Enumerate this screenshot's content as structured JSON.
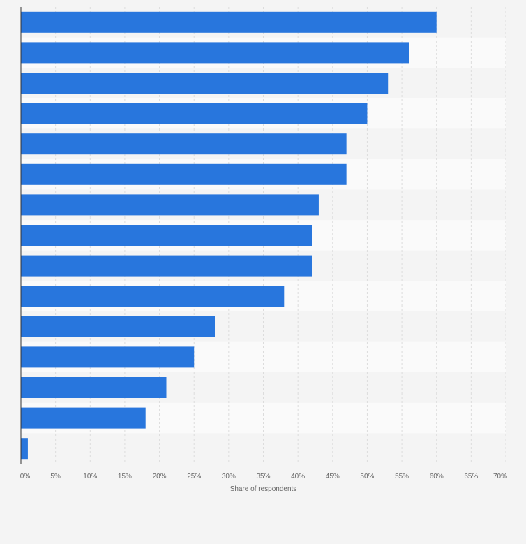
{
  "chart_data": {
    "type": "bar",
    "orientation": "horizontal",
    "categories": [
      "",
      "",
      "",
      "",
      "",
      "",
      "",
      "",
      "",
      "",
      "",
      "",
      "",
      "",
      ""
    ],
    "values": [
      60,
      56,
      53,
      50,
      47,
      47,
      43,
      42,
      42,
      38,
      28,
      25,
      21,
      18,
      1
    ],
    "xlabel": "Share of respondents",
    "xlim": [
      0,
      70
    ],
    "xticks": [
      "0%",
      "5%",
      "10%",
      "15%",
      "20%",
      "25%",
      "30%",
      "35%",
      "40%",
      "45%",
      "50%",
      "55%",
      "60%",
      "65%",
      "70%"
    ],
    "grid": true,
    "bar_color": "#2876dd",
    "band_colors": [
      "#f4f4f4",
      "#fafafa"
    ],
    "grid_color": "#dcdcdc",
    "axis_color": "#333333"
  }
}
